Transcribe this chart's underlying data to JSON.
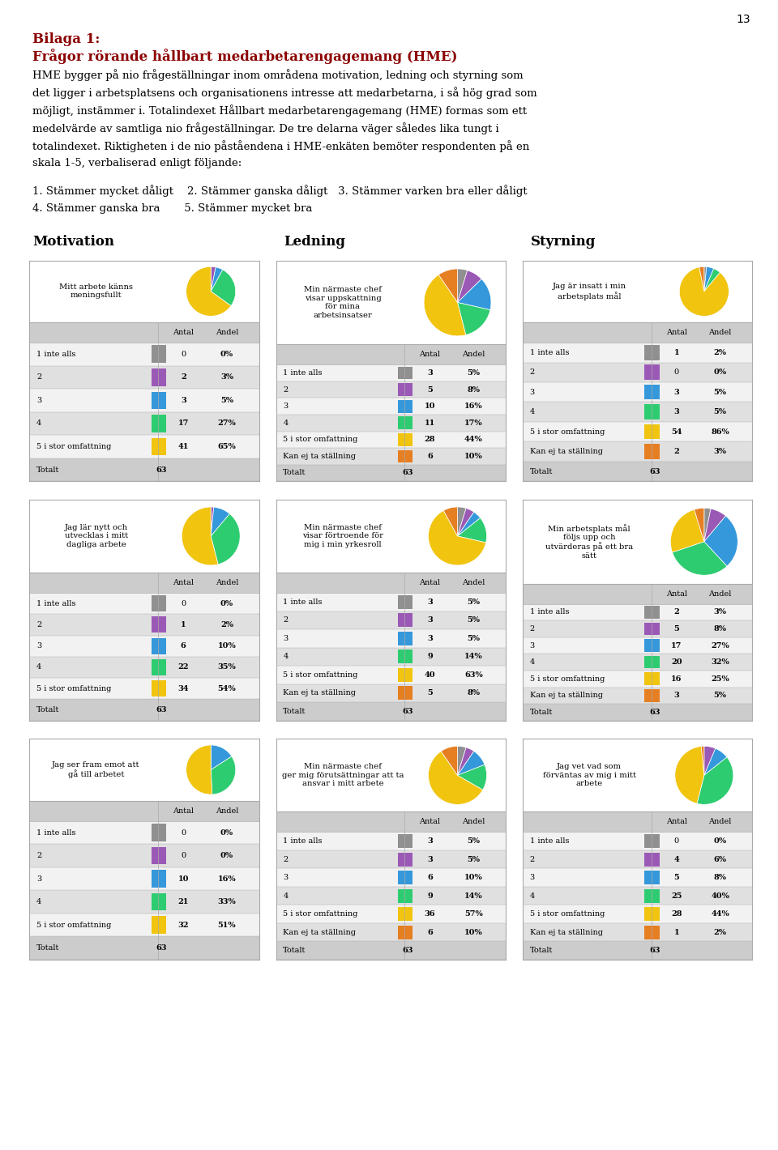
{
  "page_number": "13",
  "title_bilaga": "Bilaga 1:",
  "title_main": "Frågor rörande hållbart medarbetarengagemang (HME)",
  "col_headers": [
    "Motivation",
    "Ledning",
    "Styrning"
  ],
  "pie_colors": [
    "#909090",
    "#9B59B6",
    "#3498DB",
    "#2ECC71",
    "#F1C40F",
    "#E67E22"
  ],
  "panels": [
    {
      "title": "Mitt arbete känns\nmeningsfullt",
      "col": 0,
      "row": 0,
      "antal": [
        0,
        2,
        3,
        17,
        41,
        null
      ],
      "andel": [
        "0%",
        "3%",
        "5%",
        "27%",
        "65%",
        null
      ],
      "totalt": 63,
      "has_kan_ej": false
    },
    {
      "title": "Min närmaste chef\nvisar uppskattning\nför mina\narbetsinsatser",
      "col": 1,
      "row": 0,
      "antal": [
        3,
        5,
        10,
        11,
        28,
        6
      ],
      "andel": [
        "5%",
        "8%",
        "16%",
        "17%",
        "44%",
        "10%"
      ],
      "totalt": 63,
      "has_kan_ej": true
    },
    {
      "title": "Jag är insatt i min\narbetsplats mål",
      "col": 2,
      "row": 0,
      "antal": [
        1,
        0,
        3,
        3,
        54,
        2
      ],
      "andel": [
        "2%",
        "0%",
        "5%",
        "5%",
        "86%",
        "3%"
      ],
      "totalt": 63,
      "has_kan_ej": true
    },
    {
      "title": "Jag lär nytt och\nutvecklas i mitt\ndagliga arbete",
      "col": 0,
      "row": 1,
      "antal": [
        0,
        1,
        6,
        22,
        34,
        null
      ],
      "andel": [
        "0%",
        "2%",
        "10%",
        "35%",
        "54%",
        null
      ],
      "totalt": 63,
      "has_kan_ej": false
    },
    {
      "title": "Min närmaste chef\nvisar förtroende för\nmig i min yrkesroll",
      "col": 1,
      "row": 1,
      "antal": [
        3,
        3,
        3,
        9,
        40,
        5
      ],
      "andel": [
        "5%",
        "5%",
        "5%",
        "14%",
        "63%",
        "8%"
      ],
      "totalt": 63,
      "has_kan_ej": true
    },
    {
      "title": "Min arbetsplats mål\nföljs upp och\nutvärderas på ett bra\nsätt",
      "col": 2,
      "row": 1,
      "antal": [
        2,
        5,
        17,
        20,
        16,
        3
      ],
      "andel": [
        "3%",
        "8%",
        "27%",
        "32%",
        "25%",
        "5%"
      ],
      "totalt": 63,
      "has_kan_ej": true
    },
    {
      "title": "Jag ser fram emot att\ngå till arbetet",
      "col": 0,
      "row": 2,
      "antal": [
        0,
        0,
        10,
        21,
        32,
        null
      ],
      "andel": [
        "0%",
        "0%",
        "16%",
        "33%",
        "51%",
        null
      ],
      "totalt": 63,
      "has_kan_ej": false
    },
    {
      "title": "Min närmaste chef\nger mig förutsättningar att ta\nansvar i mitt arbete",
      "col": 1,
      "row": 2,
      "antal": [
        3,
        3,
        6,
        9,
        36,
        6
      ],
      "andel": [
        "5%",
        "5%",
        "10%",
        "14%",
        "57%",
        "10%"
      ],
      "totalt": 63,
      "has_kan_ej": true
    },
    {
      "title": "Jag vet vad som\nförväntas av mig i mitt\narbete",
      "col": 2,
      "row": 2,
      "antal": [
        0,
        4,
        5,
        25,
        28,
        1
      ],
      "andel": [
        "0%",
        "6%",
        "8%",
        "40%",
        "44%",
        "2%"
      ],
      "totalt": 63,
      "has_kan_ej": true
    }
  ],
  "bg_color": "#ffffff",
  "table_header_bg": "#cccccc",
  "table_row_light": "#f2f2f2",
  "table_row_dark": "#e0e0e0",
  "table_totalt_bg": "#cccccc",
  "border_color": "#aaaaaa",
  "dark_red": "#8B0000",
  "text_color": "#000000"
}
